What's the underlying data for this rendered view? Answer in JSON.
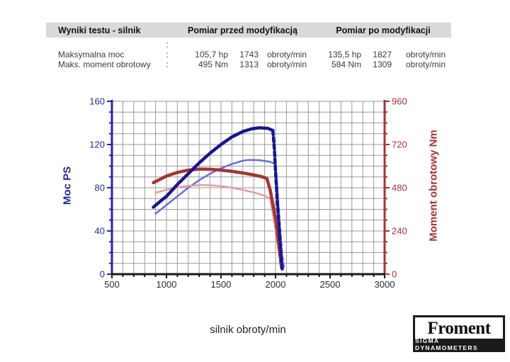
{
  "table": {
    "headers": {
      "test": "Wyniki testu - silnik",
      "before": "Pomiar przed modyfikacją",
      "after": "Pomiar po modyfikacji"
    },
    "stray_colon": ":",
    "rows": [
      {
        "label": "Maksymalna moc",
        "colon": ":",
        "before_value": "105,7 hp",
        "before_rpm": "1743",
        "before_unit": "obroty/min",
        "after_value": "135,5 hp",
        "after_rpm": "1827",
        "after_unit": "obroty/min"
      },
      {
        "label": "Maks. moment obrotowy",
        "colon": ":",
        "before_value": "495 Nm",
        "before_rpm": "1313",
        "before_unit": "obroty/min",
        "after_value": "584 Nm",
        "after_rpm": "1309",
        "after_unit": "obroty/min"
      }
    ]
  },
  "chart_data": {
    "type": "line",
    "title": "",
    "xlabel": "silnik obroty/min",
    "ylabel_left": "Moc PS",
    "ylabel_right": "Moment obrotowy Nm",
    "x_range": [
      500,
      3000
    ],
    "x_major_step": 500,
    "x_minor_step": 100,
    "y_left_range": [
      0,
      160
    ],
    "y_left_major_step": 40,
    "y_left_minor_step": 10,
    "y_right_range": [
      0,
      960
    ],
    "y_right_major_step": 240,
    "y_right_minor_step": 60,
    "grid": true,
    "legend": "none",
    "colors": {
      "grid": "#9a9a9a",
      "axis_left": "#26269c",
      "axis_right": "#a53434",
      "axis_bottom": "#1a1a1a",
      "tick_label_bottom": "#2b2b2b"
    },
    "series": [
      {
        "name": "moc-przed-modyfikacja",
        "axis": "left",
        "color": "#6a6ae0",
        "width": 2.5,
        "peak": {
          "value": 105.7,
          "rpm": 1743
        },
        "solid": [
          [
            900,
            56
          ],
          [
            1000,
            64
          ],
          [
            1100,
            72
          ],
          [
            1200,
            80
          ],
          [
            1300,
            87
          ],
          [
            1400,
            93
          ],
          [
            1500,
            98
          ],
          [
            1600,
            102
          ],
          [
            1700,
            105
          ],
          [
            1750,
            105.7
          ],
          [
            1850,
            105.5
          ],
          [
            1950,
            104
          ],
          [
            2000,
            102
          ]
        ],
        "dashed": [
          [
            2000,
            102
          ],
          [
            2015,
            82
          ],
          [
            2030,
            60
          ],
          [
            2045,
            40
          ],
          [
            2062,
            18
          ],
          [
            2078,
            5
          ]
        ]
      },
      {
        "name": "moment-przed-modyfikacja",
        "axis": "right",
        "color": "#e49c9c",
        "width": 2.5,
        "peak": {
          "value": 495,
          "rpm": 1313
        },
        "solid": [
          [
            900,
            452
          ],
          [
            1000,
            469
          ],
          [
            1100,
            482
          ],
          [
            1200,
            490
          ],
          [
            1310,
            495
          ],
          [
            1400,
            494
          ],
          [
            1500,
            489
          ],
          [
            1600,
            480
          ],
          [
            1700,
            468
          ],
          [
            1800,
            454
          ],
          [
            1900,
            436
          ],
          [
            1950,
            420
          ],
          [
            1970,
            350
          ],
          [
            1990,
            280
          ]
        ],
        "dashed": [
          [
            1990,
            280
          ],
          [
            2010,
            200
          ],
          [
            2035,
            110
          ],
          [
            2055,
            30
          ]
        ]
      },
      {
        "name": "moment-po-modyfikacji",
        "axis": "right",
        "color": "#a43434",
        "width": 4.5,
        "peak": {
          "value": 584,
          "rpm": 1309
        },
        "solid": [
          [
            880,
            508
          ],
          [
            1000,
            545
          ],
          [
            1100,
            565
          ],
          [
            1200,
            578
          ],
          [
            1310,
            584
          ],
          [
            1400,
            583
          ],
          [
            1500,
            578
          ],
          [
            1600,
            571
          ],
          [
            1700,
            562
          ],
          [
            1800,
            551
          ],
          [
            1870,
            542
          ],
          [
            1920,
            532
          ],
          [
            1950,
            470
          ],
          [
            1975,
            390
          ],
          [
            2000,
            310
          ]
        ],
        "dashed": [
          [
            2000,
            310
          ],
          [
            2020,
            205
          ],
          [
            2040,
            105
          ],
          [
            2055,
            35
          ]
        ]
      },
      {
        "name": "moc-po-modyfikacji",
        "axis": "left",
        "color": "#17178f",
        "width": 4.5,
        "peak": {
          "value": 135.5,
          "rpm": 1827
        },
        "solid": [
          [
            880,
            62
          ],
          [
            950,
            68
          ],
          [
            1000,
            72
          ],
          [
            1100,
            83
          ],
          [
            1200,
            93
          ],
          [
            1300,
            103
          ],
          [
            1400,
            112
          ],
          [
            1500,
            120
          ],
          [
            1600,
            127
          ],
          [
            1700,
            132
          ],
          [
            1780,
            134.5
          ],
          [
            1850,
            135.5
          ],
          [
            1930,
            135
          ],
          [
            1975,
            133
          ]
        ],
        "dashed": [
          [
            1975,
            133
          ],
          [
            1990,
            115
          ],
          [
            2000,
            95
          ],
          [
            2010,
            78
          ],
          [
            2020,
            62
          ],
          [
            2035,
            40
          ],
          [
            2050,
            18
          ],
          [
            2062,
            4
          ]
        ]
      }
    ]
  },
  "logo": {
    "brand": "Froment",
    "subtitle": "SIGMA DYNAMOMETERS"
  }
}
